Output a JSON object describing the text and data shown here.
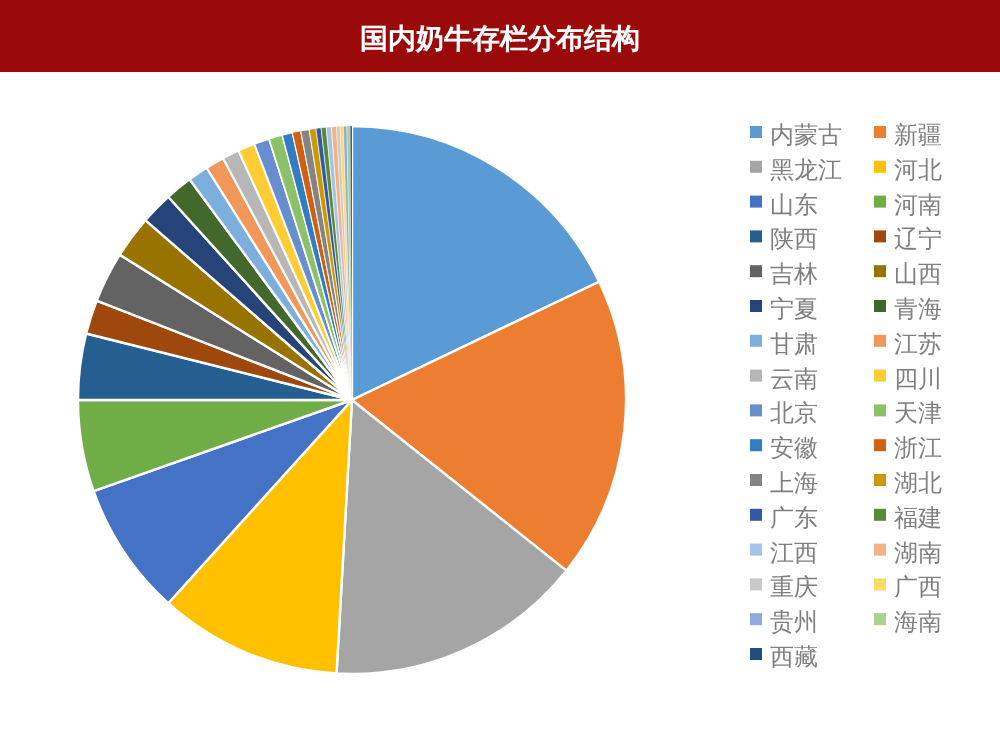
{
  "chart_data": {
    "type": "pie",
    "title": "国内奶牛存栏分布结构",
    "legend": "right",
    "categories": [
      "内蒙古",
      "新疆",
      "黑龙江",
      "河北",
      "山东",
      "河南",
      "陕西",
      "辽宁",
      "吉林",
      "山西",
      "宁夏",
      "青海",
      "甘肃",
      "江苏",
      "云南",
      "四川",
      "北京",
      "天津",
      "安徽",
      "浙江",
      "上海",
      "湖北",
      "广东",
      "福建",
      "江西",
      "湖南",
      "重庆",
      "广西",
      "贵州",
      "海南",
      "西藏"
    ],
    "values": [
      17.9,
      17.8,
      15.2,
      10.8,
      7.9,
      5.4,
      3.9,
      2.0,
      3.0,
      2.5,
      1.9,
      1.6,
      1.2,
      1.1,
      1.0,
      1.0,
      0.9,
      0.8,
      0.6,
      0.5,
      0.5,
      0.4,
      0.3,
      0.3,
      0.3,
      0.3,
      0.2,
      0.2,
      0.2,
      0.2,
      0.1
    ],
    "colors": [
      "#5b9bd5",
      "#ed7d31",
      "#a5a5a5",
      "#ffc000",
      "#4472c4",
      "#70ad47",
      "#255e91",
      "#9e480e",
      "#636363",
      "#997300",
      "#264478",
      "#43682b",
      "#7cafdd",
      "#f1975a",
      "#b7b7b7",
      "#ffcd33",
      "#698ed0",
      "#8cc168",
      "#327dc2",
      "#d26012",
      "#848484",
      "#cc9a00",
      "#335aa1",
      "#5a8a39",
      "#a3c4e5",
      "#f4b183",
      "#c9c9c9",
      "#ffd966",
      "#8faadc",
      "#a9d18e",
      "#1f4e79"
    ]
  }
}
